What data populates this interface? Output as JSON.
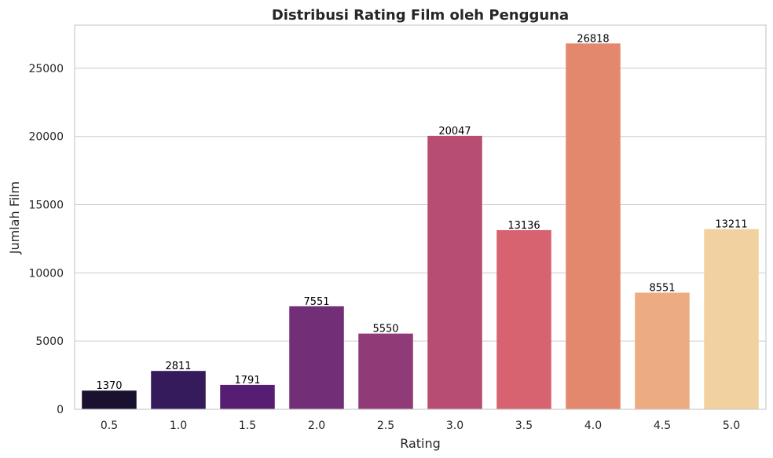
{
  "chart_data": {
    "type": "bar",
    "title": "Distribusi Rating Film oleh Pengguna",
    "xlabel": "Rating",
    "ylabel": "Jumlah Film",
    "categories": [
      "0.5",
      "1.0",
      "1.5",
      "2.0",
      "2.5",
      "3.0",
      "3.5",
      "4.0",
      "4.5",
      "5.0"
    ],
    "values": [
      1370,
      2811,
      1791,
      7551,
      5550,
      20047,
      13136,
      26818,
      8551,
      13211
    ],
    "data_labels": [
      "1370",
      "2811",
      "1791",
      "7551",
      "5550",
      "20047",
      "13136",
      "26818",
      "8551",
      "13211"
    ],
    "yticks": [
      0,
      5000,
      10000,
      15000,
      20000,
      25000
    ],
    "ytick_labels": [
      "0",
      "5000",
      "10000",
      "15000",
      "20000",
      "25000"
    ],
    "ylim": [
      0,
      28160
    ],
    "grid": "y",
    "colors": [
      "#1a1130",
      "#351a5c",
      "#571d73",
      "#722e76",
      "#903a78",
      "#b84d73",
      "#d6636f",
      "#e3886d",
      "#edab82",
      "#f1d19f"
    ]
  }
}
